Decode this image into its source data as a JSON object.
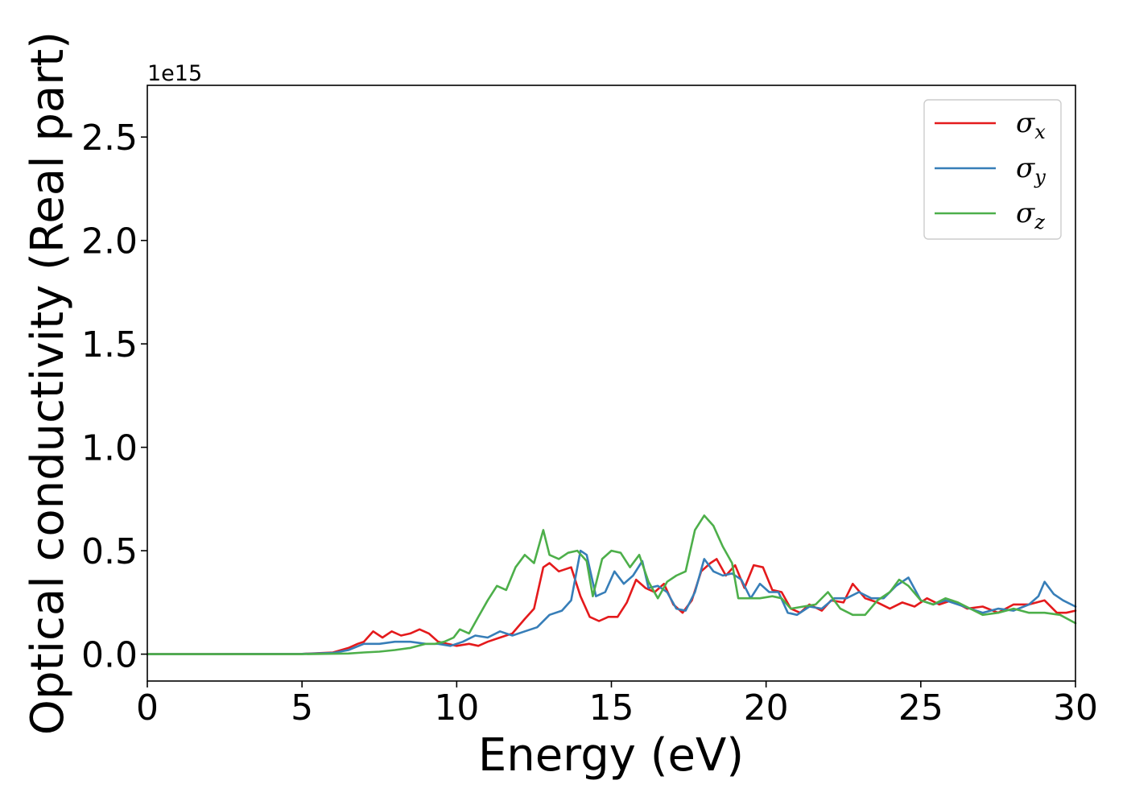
{
  "chart_data": {
    "type": "line",
    "xlabel": "Energy (eV)",
    "ylabel": "Optical conductivity (Real part)",
    "y_offset_label": "1e15",
    "xlim": [
      0,
      30
    ],
    "ylim": [
      -0.13,
      2.75
    ],
    "x_ticks": [
      0,
      5,
      10,
      15,
      20,
      25,
      30
    ],
    "x_tick_labels": [
      "0",
      "5",
      "10",
      "15",
      "20",
      "25",
      "30"
    ],
    "y_ticks": [
      0.0,
      0.5,
      1.0,
      1.5,
      2.0,
      2.5
    ],
    "y_tick_labels": [
      "0.0",
      "0.5",
      "1.0",
      "1.5",
      "2.0",
      "2.5"
    ],
    "grid": false,
    "legend_position": "top-right",
    "series": [
      {
        "name": "σx",
        "symbol": "σ",
        "subscript": "x",
        "color": "#e41a1c",
        "points": [
          [
            0,
            0
          ],
          [
            5,
            0.001
          ],
          [
            6,
            0.008
          ],
          [
            6.5,
            0.03
          ],
          [
            6.8,
            0.05
          ],
          [
            7.0,
            0.06
          ],
          [
            7.3,
            0.11
          ],
          [
            7.6,
            0.08
          ],
          [
            7.9,
            0.11
          ],
          [
            8.2,
            0.09
          ],
          [
            8.5,
            0.1
          ],
          [
            8.8,
            0.12
          ],
          [
            9.1,
            0.1
          ],
          [
            9.4,
            0.06
          ],
          [
            9.7,
            0.05
          ],
          [
            10.0,
            0.04
          ],
          [
            10.4,
            0.05
          ],
          [
            10.7,
            0.04
          ],
          [
            11.0,
            0.06
          ],
          [
            11.4,
            0.08
          ],
          [
            11.8,
            0.1
          ],
          [
            12.2,
            0.17
          ],
          [
            12.5,
            0.22
          ],
          [
            12.8,
            0.42
          ],
          [
            13.0,
            0.44
          ],
          [
            13.3,
            0.4
          ],
          [
            13.7,
            0.42
          ],
          [
            14.0,
            0.28
          ],
          [
            14.3,
            0.18
          ],
          [
            14.6,
            0.16
          ],
          [
            14.9,
            0.18
          ],
          [
            15.2,
            0.18
          ],
          [
            15.5,
            0.25
          ],
          [
            15.8,
            0.36
          ],
          [
            16.1,
            0.32
          ],
          [
            16.4,
            0.3
          ],
          [
            16.7,
            0.34
          ],
          [
            17.0,
            0.24
          ],
          [
            17.3,
            0.2
          ],
          [
            17.6,
            0.26
          ],
          [
            17.9,
            0.4
          ],
          [
            18.2,
            0.44
          ],
          [
            18.4,
            0.46
          ],
          [
            18.7,
            0.38
          ],
          [
            19.0,
            0.43
          ],
          [
            19.3,
            0.32
          ],
          [
            19.6,
            0.43
          ],
          [
            19.9,
            0.42
          ],
          [
            20.2,
            0.31
          ],
          [
            20.5,
            0.3
          ],
          [
            20.8,
            0.22
          ],
          [
            21.1,
            0.2
          ],
          [
            21.4,
            0.24
          ],
          [
            21.8,
            0.21
          ],
          [
            22.1,
            0.26
          ],
          [
            22.5,
            0.25
          ],
          [
            22.8,
            0.34
          ],
          [
            23.2,
            0.27
          ],
          [
            23.6,
            0.25
          ],
          [
            24.0,
            0.22
          ],
          [
            24.4,
            0.25
          ],
          [
            24.8,
            0.23
          ],
          [
            25.2,
            0.27
          ],
          [
            25.6,
            0.24
          ],
          [
            26.0,
            0.26
          ],
          [
            26.5,
            0.22
          ],
          [
            27.0,
            0.23
          ],
          [
            27.5,
            0.2
          ],
          [
            28.0,
            0.24
          ],
          [
            28.5,
            0.24
          ],
          [
            29.0,
            0.26
          ],
          [
            29.4,
            0.2
          ],
          [
            29.7,
            0.2
          ],
          [
            30.0,
            0.21
          ]
        ]
      },
      {
        "name": "σy",
        "symbol": "σ",
        "subscript": "y",
        "color": "#377eb8",
        "points": [
          [
            0,
            0
          ],
          [
            5,
            0.001
          ],
          [
            6,
            0.006
          ],
          [
            6.5,
            0.02
          ],
          [
            7.0,
            0.05
          ],
          [
            7.5,
            0.05
          ],
          [
            8.0,
            0.06
          ],
          [
            8.5,
            0.06
          ],
          [
            9.0,
            0.05
          ],
          [
            9.4,
            0.05
          ],
          [
            9.8,
            0.04
          ],
          [
            10.2,
            0.06
          ],
          [
            10.6,
            0.09
          ],
          [
            11.0,
            0.08
          ],
          [
            11.4,
            0.11
          ],
          [
            11.8,
            0.09
          ],
          [
            12.2,
            0.11
          ],
          [
            12.6,
            0.13
          ],
          [
            13.0,
            0.19
          ],
          [
            13.4,
            0.21
          ],
          [
            13.7,
            0.26
          ],
          [
            14.0,
            0.5
          ],
          [
            14.2,
            0.48
          ],
          [
            14.5,
            0.28
          ],
          [
            14.8,
            0.3
          ],
          [
            15.1,
            0.4
          ],
          [
            15.4,
            0.34
          ],
          [
            15.7,
            0.38
          ],
          [
            16.0,
            0.45
          ],
          [
            16.2,
            0.32
          ],
          [
            16.5,
            0.33
          ],
          [
            16.8,
            0.3
          ],
          [
            17.1,
            0.22
          ],
          [
            17.4,
            0.21
          ],
          [
            17.7,
            0.3
          ],
          [
            18.0,
            0.46
          ],
          [
            18.3,
            0.4
          ],
          [
            18.6,
            0.38
          ],
          [
            18.9,
            0.39
          ],
          [
            19.2,
            0.36
          ],
          [
            19.5,
            0.27
          ],
          [
            19.8,
            0.34
          ],
          [
            20.1,
            0.3
          ],
          [
            20.4,
            0.3
          ],
          [
            20.7,
            0.2
          ],
          [
            21.0,
            0.19
          ],
          [
            21.4,
            0.23
          ],
          [
            21.8,
            0.22
          ],
          [
            22.2,
            0.27
          ],
          [
            22.6,
            0.27
          ],
          [
            23.0,
            0.3
          ],
          [
            23.4,
            0.27
          ],
          [
            23.8,
            0.27
          ],
          [
            24.2,
            0.33
          ],
          [
            24.6,
            0.37
          ],
          [
            25.0,
            0.26
          ],
          [
            25.4,
            0.24
          ],
          [
            25.8,
            0.26
          ],
          [
            26.2,
            0.24
          ],
          [
            26.6,
            0.22
          ],
          [
            27.0,
            0.2
          ],
          [
            27.5,
            0.22
          ],
          [
            28.0,
            0.21
          ],
          [
            28.5,
            0.24
          ],
          [
            28.8,
            0.28
          ],
          [
            29.0,
            0.35
          ],
          [
            29.3,
            0.29
          ],
          [
            29.6,
            0.26
          ],
          [
            30.0,
            0.23
          ]
        ]
      },
      {
        "name": "σz",
        "symbol": "σ",
        "subscript": "z",
        "color": "#4daf4a",
        "points": [
          [
            0,
            0
          ],
          [
            5,
            0
          ],
          [
            6.5,
            0.003
          ],
          [
            7.0,
            0.008
          ],
          [
            7.5,
            0.012
          ],
          [
            8.0,
            0.02
          ],
          [
            8.5,
            0.03
          ],
          [
            9.0,
            0.05
          ],
          [
            9.3,
            0.05
          ],
          [
            9.6,
            0.06
          ],
          [
            9.9,
            0.08
          ],
          [
            10.1,
            0.12
          ],
          [
            10.4,
            0.1
          ],
          [
            10.7,
            0.18
          ],
          [
            11.0,
            0.26
          ],
          [
            11.3,
            0.33
          ],
          [
            11.6,
            0.31
          ],
          [
            11.9,
            0.42
          ],
          [
            12.2,
            0.48
          ],
          [
            12.5,
            0.44
          ],
          [
            12.8,
            0.6
          ],
          [
            13.0,
            0.48
          ],
          [
            13.3,
            0.46
          ],
          [
            13.6,
            0.49
          ],
          [
            13.9,
            0.5
          ],
          [
            14.2,
            0.45
          ],
          [
            14.4,
            0.28
          ],
          [
            14.7,
            0.46
          ],
          [
            15.0,
            0.5
          ],
          [
            15.3,
            0.49
          ],
          [
            15.6,
            0.42
          ],
          [
            15.9,
            0.48
          ],
          [
            16.2,
            0.35
          ],
          [
            16.5,
            0.27
          ],
          [
            16.8,
            0.35
          ],
          [
            17.1,
            0.38
          ],
          [
            17.4,
            0.4
          ],
          [
            17.7,
            0.6
          ],
          [
            18.0,
            0.67
          ],
          [
            18.3,
            0.62
          ],
          [
            18.6,
            0.52
          ],
          [
            18.9,
            0.44
          ],
          [
            19.1,
            0.27
          ],
          [
            19.4,
            0.27
          ],
          [
            19.8,
            0.27
          ],
          [
            20.2,
            0.28
          ],
          [
            20.5,
            0.27
          ],
          [
            20.8,
            0.22
          ],
          [
            21.2,
            0.23
          ],
          [
            21.6,
            0.24
          ],
          [
            22.0,
            0.3
          ],
          [
            22.4,
            0.22
          ],
          [
            22.8,
            0.19
          ],
          [
            23.2,
            0.19
          ],
          [
            23.6,
            0.26
          ],
          [
            24.0,
            0.3
          ],
          [
            24.3,
            0.36
          ],
          [
            24.6,
            0.33
          ],
          [
            25.0,
            0.26
          ],
          [
            25.4,
            0.24
          ],
          [
            25.8,
            0.27
          ],
          [
            26.2,
            0.25
          ],
          [
            26.6,
            0.22
          ],
          [
            27.0,
            0.19
          ],
          [
            27.5,
            0.2
          ],
          [
            28.0,
            0.22
          ],
          [
            28.5,
            0.2
          ],
          [
            29.0,
            0.2
          ],
          [
            29.5,
            0.19
          ],
          [
            30.0,
            0.15
          ]
        ]
      }
    ]
  }
}
